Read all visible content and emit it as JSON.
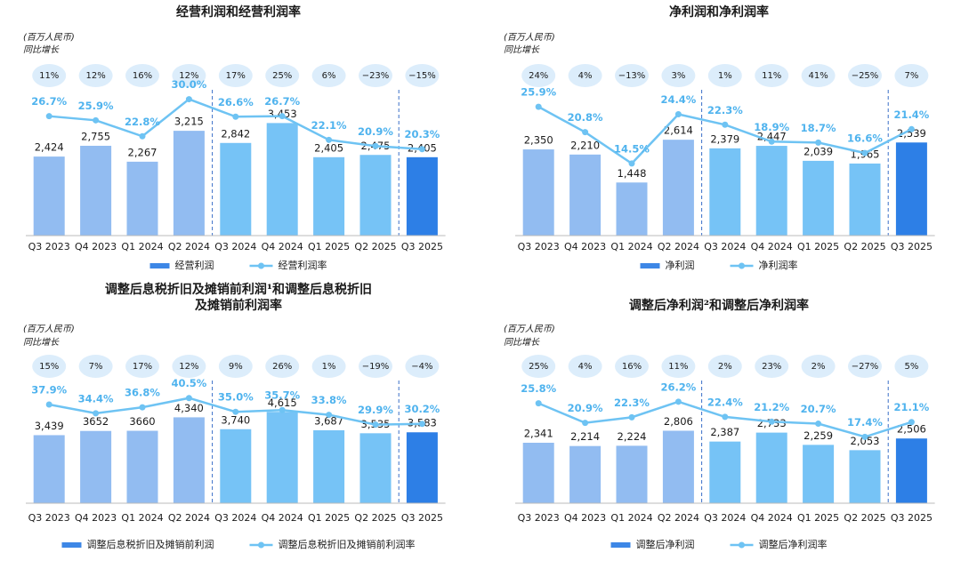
{
  "chart_data": [
    {
      "type": "bar_line",
      "title": [
        "经营利润和经营利润率"
      ],
      "unit_label": "(百万人民币)",
      "categories": [
        "Q3 2023",
        "Q4 2023",
        "Q1 2024",
        "Q2 2024",
        "Q3 2024",
        "Q4 2024",
        "Q1 2025",
        "Q2 2025",
        "Q3 2025"
      ],
      "growth": {
        "name": "同比增长",
        "values": [
          11,
          12,
          16,
          12,
          17,
          25,
          6,
          -23,
          -15
        ],
        "value_labels": [
          "11%",
          "12%",
          "16%",
          "12%",
          "17%",
          "25%",
          "6%",
          "−23%",
          "−15%"
        ]
      },
      "series": [
        {
          "name": "经营利润",
          "color": "#3d87e6",
          "bar_colors": [
            "#92bcf1",
            "#92bcf1",
            "#92bcf1",
            "#92bcf1",
            "#76c3f6",
            "#76c3f6",
            "#76c3f6",
            "#76c3f6",
            "#2d7fe6"
          ],
          "values": [
            2424,
            2755,
            2267,
            3215,
            2842,
            3453,
            2405,
            2475,
            2405
          ],
          "value_labels": [
            "2,424",
            "2,755",
            "2,267",
            "3,215",
            "2,842",
            "3,453",
            "2,405",
            "2,475",
            "2,405"
          ]
        },
        {
          "name": "经营利润率",
          "color": "#6ec3f3",
          "axis": "y2",
          "values": [
            26.7,
            25.9,
            22.8,
            30.0,
            26.6,
            26.7,
            22.1,
            20.9,
            20.3
          ],
          "value_labels": [
            "26.7%",
            "25.9%",
            "22.8%",
            "30.0%",
            "26.6%",
            "26.7%",
            "22.1%",
            "20.9%",
            "20.3%"
          ]
        }
      ],
      "ylim": [
        0,
        4500
      ],
      "y2lim": [
        3.5,
        32
      ]
    },
    {
      "type": "bar_line",
      "title": [
        "净利润和净利润率"
      ],
      "unit_label": "(百万人民币)",
      "categories": [
        "Q3 2023",
        "Q4 2023",
        "Q1 2024",
        "Q2 2024",
        "Q3 2024",
        "Q4 2024",
        "Q1 2025",
        "Q2 2025",
        "Q3 2025"
      ],
      "growth": {
        "name": "同比增长",
        "values": [
          24,
          4,
          -13,
          3,
          1,
          11,
          41,
          -25,
          7
        ],
        "value_labels": [
          "24%",
          "4%",
          "−13%",
          "3%",
          "1%",
          "11%",
          "41%",
          "−25%",
          "7%"
        ]
      },
      "series": [
        {
          "name": "净利润",
          "color": "#3d87e6",
          "bar_colors": [
            "#92bcf1",
            "#92bcf1",
            "#92bcf1",
            "#92bcf1",
            "#76c3f6",
            "#76c3f6",
            "#76c3f6",
            "#76c3f6",
            "#2d7fe6"
          ],
          "values": [
            2350,
            2210,
            1448,
            2614,
            2379,
            2447,
            2039,
            1965,
            2539
          ],
          "value_labels": [
            "2,350",
            "2,210",
            "1,448",
            "2,614",
            "2,379",
            "2,447",
            "2,039",
            "1,965",
            "2,539"
          ]
        },
        {
          "name": "净利润率",
          "color": "#6ec3f3",
          "axis": "y2",
          "values": [
            25.9,
            20.8,
            14.5,
            24.4,
            22.3,
            18.9,
            18.7,
            16.6,
            21.4
          ],
          "value_labels": [
            "25.9%",
            "20.8%",
            "14.5%",
            "24.4%",
            "22.3%",
            "18.9%",
            "18.7%",
            "16.6%",
            "21.4%"
          ]
        }
      ],
      "ylim": [
        0,
        4000
      ],
      "y2lim": [
        0,
        29.5
      ]
    },
    {
      "type": "bar_line",
      "title": [
        "调整后息税折旧及摊销前利润¹和调整后息税折旧",
        "及摊销前利润率"
      ],
      "unit_label": "(百万人民币)",
      "categories": [
        "Q3 2023",
        "Q4 2023",
        "Q1 2024",
        "Q2 2024",
        "Q3 2024",
        "Q4 2024",
        "Q1 2025",
        "Q2 2025",
        "Q3 2025"
      ],
      "growth": {
        "name": "同比增长",
        "values": [
          15,
          7,
          17,
          12,
          9,
          26,
          1,
          -19,
          -4
        ],
        "value_labels": [
          "15%",
          "7%",
          "17%",
          "12%",
          "9%",
          "26%",
          "1%",
          "−19%",
          "−4%"
        ]
      },
      "series": [
        {
          "name": "调整后息税折旧及摊销前利润",
          "color": "#3d87e6",
          "bar_colors": [
            "#92bcf1",
            "#92bcf1",
            "#92bcf1",
            "#92bcf1",
            "#76c3f6",
            "#76c3f6",
            "#76c3f6",
            "#76c3f6",
            "#2d7fe6"
          ],
          "values": [
            3439,
            3652,
            3660,
            4340,
            3740,
            4615,
            3687,
            3535,
            3583
          ],
          "value_labels": [
            "3,439",
            "3652",
            "3660",
            "4,340",
            "3,740",
            "4,615",
            "3,687",
            "3,535",
            "3,583"
          ]
        },
        {
          "name": "调整后息税折旧及摊销前利润率",
          "color": "#6ec3f3",
          "axis": "y2",
          "values": [
            37.9,
            34.4,
            36.8,
            40.5,
            35.0,
            35.7,
            33.8,
            29.9,
            30.2
          ],
          "value_labels": [
            "37.9%",
            "34.4%",
            "36.8%",
            "40.5%",
            "35.0%",
            "35.7%",
            "33.8%",
            "29.9%",
            "30.2%"
          ]
        }
      ],
      "ylim": [
        0,
        6200
      ],
      "y2lim": [
        -1.5,
        47.5
      ]
    },
    {
      "type": "bar_line",
      "title": [
        "调整后净利润²和调整后净利润率"
      ],
      "unit_label": "(百万人民币)",
      "categories": [
        "Q3 2023",
        "Q4 2023",
        "Q1 2024",
        "Q2 2024",
        "Q3 2024",
        "Q4 2024",
        "Q1 2025",
        "Q2 2025",
        "Q3 2025"
      ],
      "growth": {
        "name": "同比增长",
        "values": [
          25,
          4,
          16,
          11,
          2,
          23,
          2,
          -27,
          5
        ],
        "value_labels": [
          "25%",
          "4%",
          "16%",
          "11%",
          "2%",
          "23%",
          "2%",
          "−27%",
          "5%"
        ]
      },
      "series": [
        {
          "name": "调整后净利润",
          "color": "#3d87e6",
          "bar_colors": [
            "#92bcf1",
            "#92bcf1",
            "#92bcf1",
            "#92bcf1",
            "#76c3f6",
            "#76c3f6",
            "#76c3f6",
            "#76c3f6",
            "#2d7fe6"
          ],
          "values": [
            2341,
            2214,
            2224,
            2806,
            2387,
            2733,
            2259,
            2053,
            2506
          ],
          "value_labels": [
            "2,341",
            "2,214",
            "2,224",
            "2,806",
            "2,387",
            "2,733",
            "2,259",
            "2,053",
            "2,506"
          ]
        },
        {
          "name": "调整后净利润率",
          "color": "#6ec3f3",
          "axis": "y2",
          "values": [
            25.8,
            20.9,
            22.3,
            26.2,
            22.4,
            21.2,
            20.7,
            17.4,
            21.1
          ],
          "value_labels": [
            "25.8%",
            "20.9%",
            "22.3%",
            "26.2%",
            "22.4%",
            "21.2%",
            "20.7%",
            "17.4%",
            "21.1%"
          ]
        }
      ],
      "ylim": [
        0,
        4750
      ],
      "y2lim": [
        0.8,
        31.5
      ]
    }
  ]
}
